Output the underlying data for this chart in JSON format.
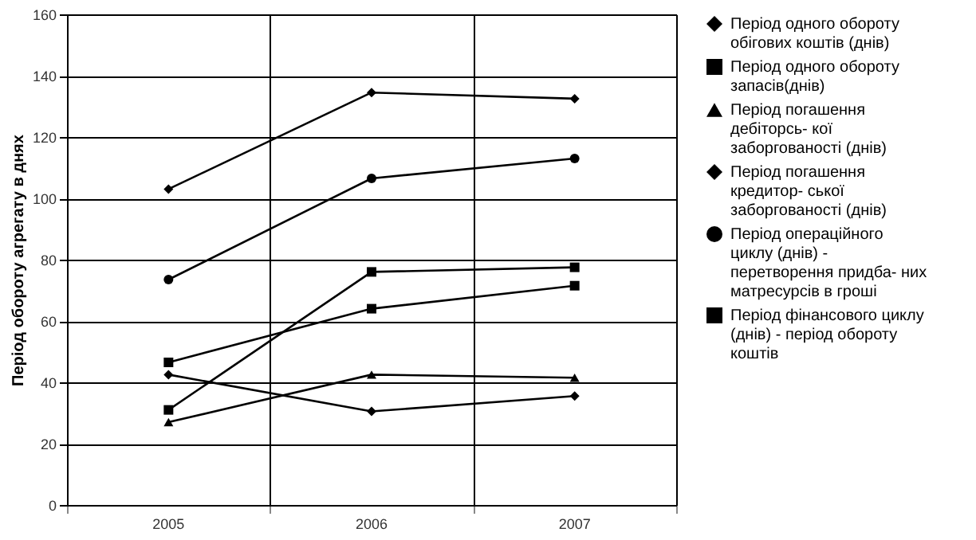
{
  "chart_data": {
    "type": "line",
    "ylabel": "Період обороту агрегату в днях",
    "categories": [
      "2005",
      "2006",
      "2007"
    ],
    "series": [
      {
        "name": "Період одного обороту обігових коштів (днів)",
        "color": "#000000",
        "marker": "diamond",
        "values": [
          103,
          134.5,
          132.5
        ]
      },
      {
        "name": "Період одного обороту запасів(днів)",
        "color": "#000000",
        "marker": "square",
        "values": [
          46.5,
          64,
          71.5
        ]
      },
      {
        "name": "Період погашення дебіторсь- кої заборгованості (днів)",
        "color": "#000000",
        "marker": "triangle",
        "values": [
          27,
          42.5,
          41.5
        ]
      },
      {
        "name": "Період погашення кредитор- ської заборгованості (днів)",
        "color": "#000000",
        "marker": "diamond",
        "values": [
          42.5,
          30.5,
          35.5
        ]
      },
      {
        "name": "Період операційного циклу (днів) - перетворення придба- них матресурсів в гроші",
        "color": "#000000",
        "marker": "circle",
        "values": [
          73.5,
          106.5,
          113
        ]
      },
      {
        "name": "Період фінансового циклу (днів) - період обороту коштів",
        "color": "#000000",
        "marker": "square",
        "values": [
          31,
          76,
          77.5
        ]
      }
    ],
    "ylim": [
      0,
      160
    ],
    "yticks": [
      0,
      20,
      40,
      60,
      80,
      100,
      120,
      140,
      160
    ],
    "grid": true,
    "legend": "right",
    "line_style": "solid"
  }
}
